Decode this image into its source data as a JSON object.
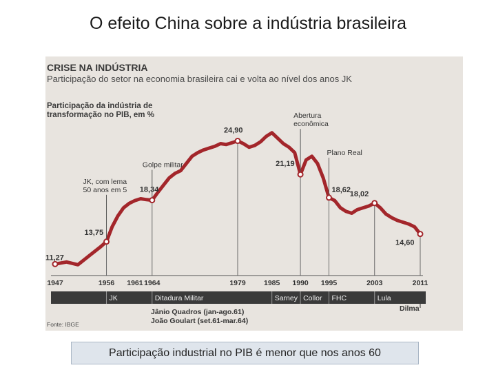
{
  "slide": {
    "title": "O efeito China sobre a indústria brasileira",
    "caption": "Participação industrial no PIB é menor que nos anos 60"
  },
  "chart_data": {
    "type": "line",
    "title": "CRISE NA INDÚSTRIA",
    "subtitle": "Participação do setor na economia brasileira cai e volta ao nível dos anos JK",
    "ylabel": "Participação da indústria de transformação no PIB, em %",
    "source": "Fonte: IBGE",
    "x_ticks": [
      "1947",
      "1956",
      "1961",
      "1964",
      "1979",
      "1985",
      "1990",
      "1995",
      "2003",
      "2011"
    ],
    "x_range": [
      1947,
      2011
    ],
    "y_range": [
      10,
      27
    ],
    "line_color": "#a3262b",
    "series": [
      {
        "x": [
          1947,
          1949,
          1951,
          1953,
          1955,
          1956,
          1957,
          1958,
          1959,
          1960,
          1961,
          1962,
          1963,
          1964,
          1965,
          1966,
          1967,
          1968,
          1969,
          1970,
          1971,
          1972,
          1973,
          1974,
          1975,
          1976,
          1977,
          1978,
          1979,
          1980,
          1981,
          1982,
          1983,
          1984,
          1985,
          1986,
          1987,
          1988,
          1989,
          1990,
          1991,
          1992,
          1993,
          1994,
          1995,
          1996,
          1997,
          1998,
          1999,
          2000,
          2001,
          2002,
          2003,
          2004,
          2005,
          2006,
          2007,
          2008,
          2009,
          2010,
          2011
        ],
        "y": [
          11.27,
          11.5,
          11.2,
          12.2,
          13.2,
          13.75,
          15.4,
          16.6,
          17.5,
          18.0,
          18.3,
          18.5,
          18.4,
          18.34,
          19.2,
          20.0,
          20.8,
          21.3,
          21.6,
          22.4,
          23.2,
          23.6,
          23.9,
          24.1,
          24.3,
          24.6,
          24.5,
          24.7,
          24.9,
          24.6,
          24.2,
          24.4,
          24.8,
          25.4,
          25.8,
          25.2,
          24.6,
          24.2,
          23.6,
          21.19,
          22.8,
          23.2,
          22.4,
          20.8,
          18.62,
          18.3,
          17.5,
          17.1,
          16.9,
          17.3,
          17.5,
          17.7,
          18.02,
          17.5,
          16.8,
          16.4,
          16.1,
          15.9,
          15.7,
          15.4,
          14.6
        ]
      }
    ],
    "point_labels": [
      {
        "x": 1947,
        "y": 11.27,
        "text": "11,27"
      },
      {
        "x": 1956,
        "y": 13.75,
        "text": "13,75"
      },
      {
        "x": 1964,
        "y": 18.34,
        "text": "18,34"
      },
      {
        "x": 1979,
        "y": 24.9,
        "text": "24,90"
      },
      {
        "x": 1990,
        "y": 21.19,
        "text": "21,19"
      },
      {
        "x": 1995,
        "y": 18.62,
        "text": "18,62"
      },
      {
        "x": 2003,
        "y": 18.02,
        "text": "18,02"
      },
      {
        "x": 2011,
        "y": 14.6,
        "text": "14,60"
      }
    ],
    "annotations": [
      {
        "x": 1956,
        "y": 13.75,
        "lines": [
          "JK, com lema",
          "50 anos em 5"
        ]
      },
      {
        "x": 1964,
        "y": 18.34,
        "lines": [
          "Golpe militar"
        ]
      },
      {
        "x": 1990,
        "y": 21.19,
        "lines": [
          "Abertura",
          "econômica"
        ]
      },
      {
        "x": 1995,
        "y": 18.62,
        "lines": [
          "Plano Real"
        ]
      }
    ],
    "periods": [
      {
        "label": "JK",
        "from": 1956,
        "to": 1961
      },
      {
        "label": "Ditadura Militar",
        "from": 1964,
        "to": 1985
      },
      {
        "label": "Sarney",
        "from": 1985,
        "to": 1990
      },
      {
        "label": "Collor",
        "from": 1990,
        "to": 1992
      },
      {
        "label": "FHC",
        "from": 1995,
        "to": 2003
      },
      {
        "label": "Lula",
        "from": 2003,
        "to": 2011
      },
      {
        "label": "Dilma",
        "from": 2011,
        "to": 2011
      }
    ],
    "period_notes": [
      "Jânio Quadros (jan-ago.61)",
      "João Goulart (set.61-mar.64)"
    ]
  }
}
